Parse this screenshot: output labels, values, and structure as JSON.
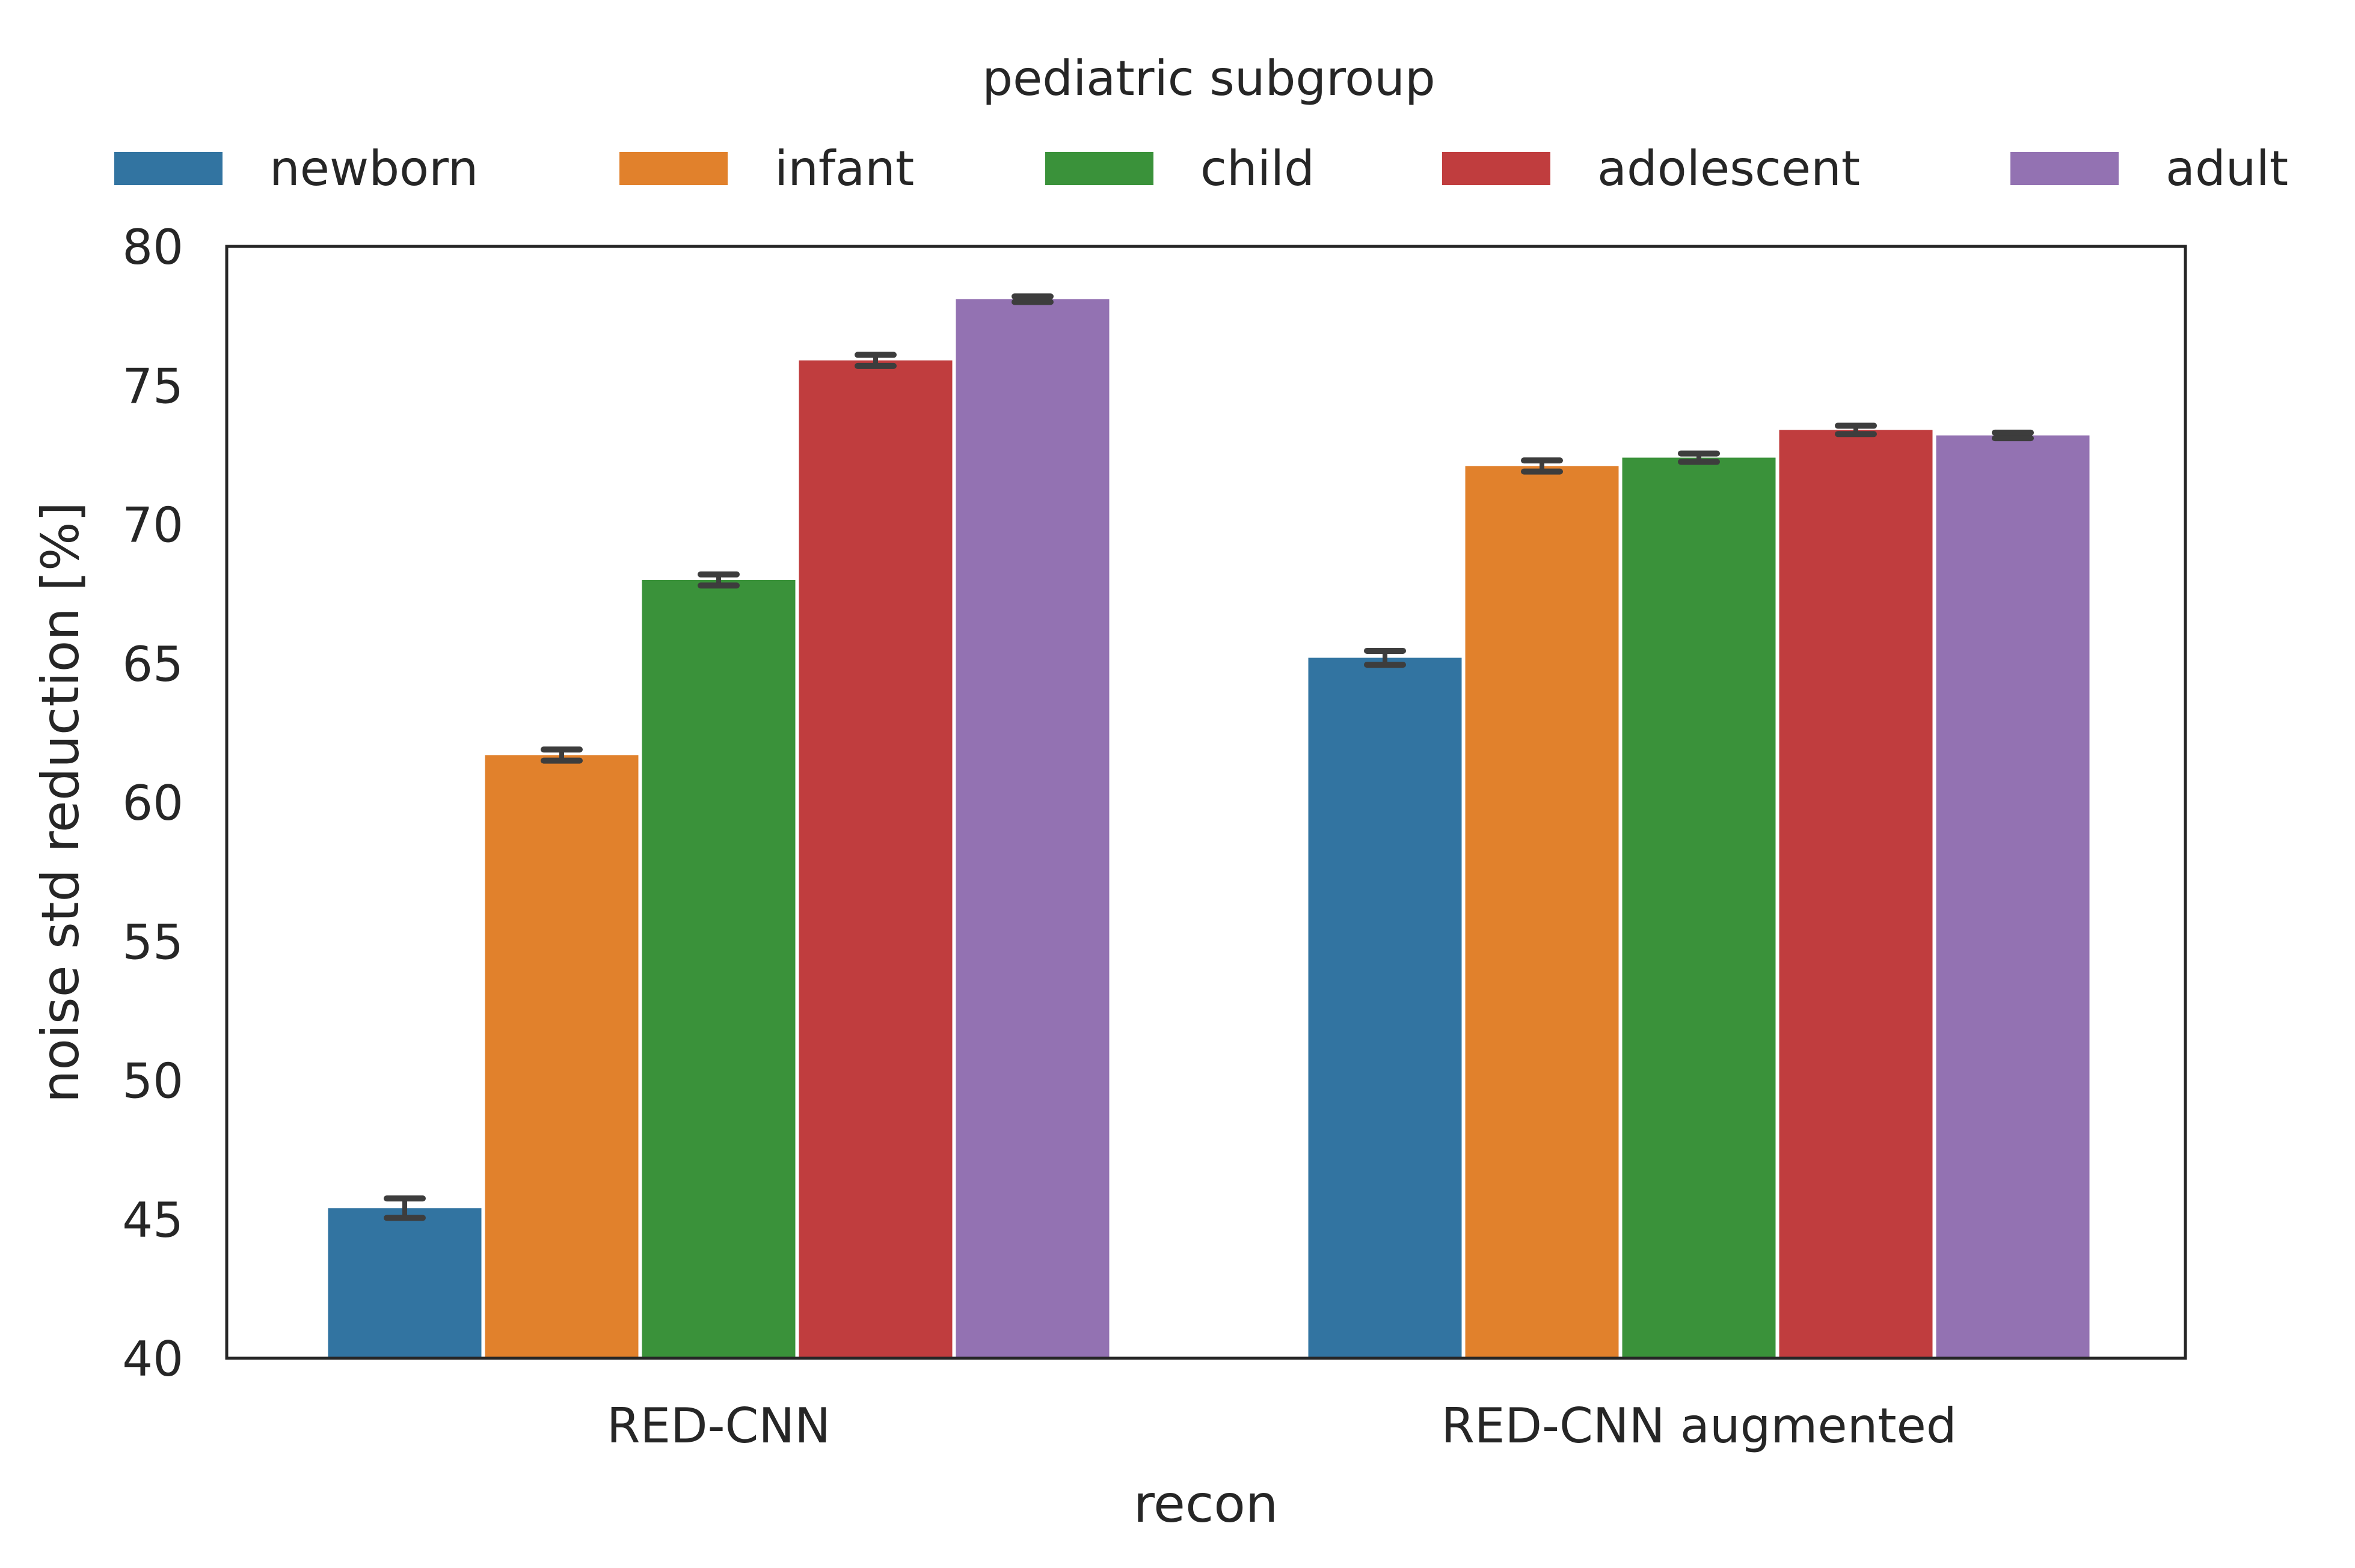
{
  "chart_data": {
    "type": "bar",
    "title": "",
    "xlabel": "recon",
    "ylabel": "noise std reduction [%]",
    "categories": [
      "RED-CNN",
      "RED-CNN augmented"
    ],
    "legend": {
      "title": "pediatric subgroup",
      "placement": "top-center",
      "ncol": 5
    },
    "series": [
      {
        "name": "newborn",
        "color": "#3274a1",
        "values": [
          45.4,
          65.2
        ],
        "err": [
          0.35,
          0.25
        ]
      },
      {
        "name": "infant",
        "color": "#e1812c",
        "values": [
          61.7,
          72.1
        ],
        "err": [
          0.2,
          0.2
        ]
      },
      {
        "name": "child",
        "color": "#3a923a",
        "values": [
          68.0,
          72.4
        ],
        "err": [
          0.2,
          0.15
        ]
      },
      {
        "name": "adolescent",
        "color": "#c03d3e",
        "values": [
          75.9,
          73.4
        ],
        "err": [
          0.2,
          0.15
        ]
      },
      {
        "name": "adult",
        "color": "#9372b2",
        "values": [
          78.1,
          73.2
        ],
        "err": [
          0.1,
          0.1
        ]
      }
    ],
    "ylim": [
      40,
      80
    ],
    "yticks": [
      40,
      45,
      50,
      55,
      60,
      65,
      70,
      75,
      80
    ],
    "grid": false
  }
}
